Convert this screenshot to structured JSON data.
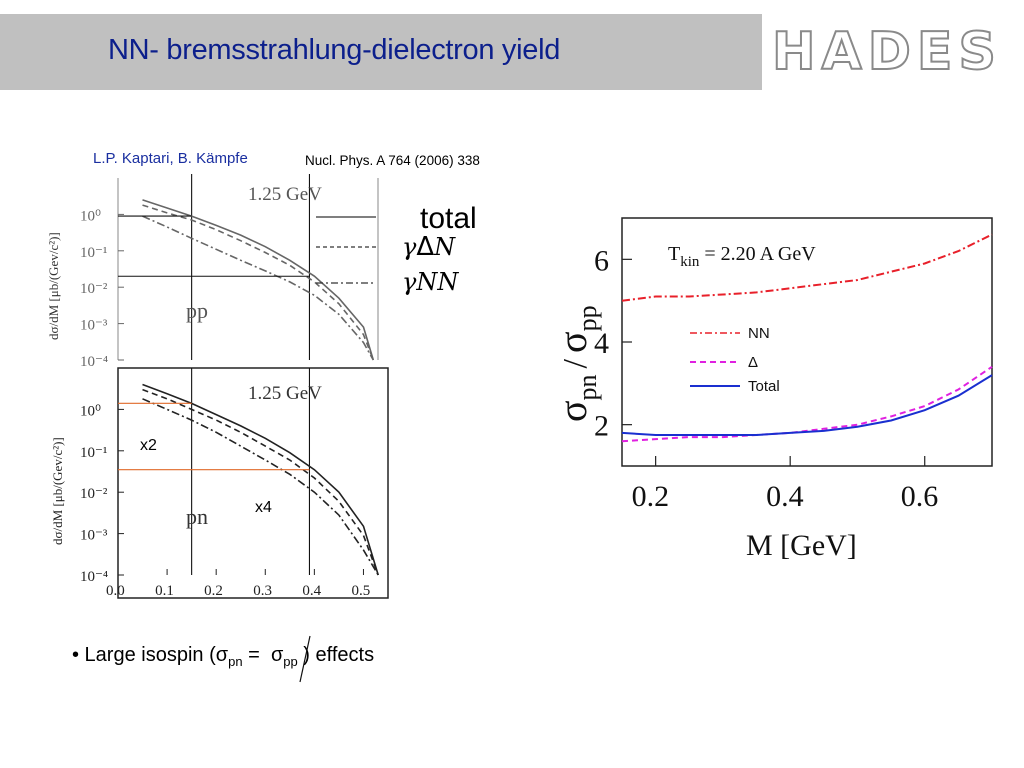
{
  "slide": {
    "title": "NN- bremsstrahlung-dielectron yield",
    "logo": "HADES",
    "reference_authors": "L.P. Kaptari, B. Kämpfe",
    "reference_journal": "Nucl. Phys. A 764 (2006) 338",
    "bullet_prefix": "• Large isospin (",
    "bullet_sigma": "σ",
    "bullet_pn": "pn",
    "bullet_eq": "=",
    "bullet_pp": "pp",
    "bullet_suffix": " ) effects"
  },
  "legend_left": {
    "total": "total",
    "delta_gamma": "γ",
    "delta_sym": "Δ",
    "delta_N": "N",
    "nn": "γNN"
  },
  "chart_data": [
    {
      "type": "line",
      "panel": "pp",
      "label": "pp",
      "annotation": "1.25 GeV",
      "ylabel": "dσ/dM [μb/(Gev/c²)]",
      "yscale": "log",
      "ylim": [
        0.0001,
        10
      ],
      "xlim": [
        0.0,
        0.55
      ],
      "yticks": [
        "10⁰",
        "10⁻¹",
        "10⁻²",
        "10⁻³",
        "10⁻⁴"
      ],
      "x": [
        0.05,
        0.1,
        0.15,
        0.2,
        0.25,
        0.3,
        0.35,
        0.4,
        0.45,
        0.5,
        0.52
      ],
      "series": [
        {
          "style": "solid",
          "values": [
            2.5,
            1.5,
            0.9,
            0.5,
            0.27,
            0.13,
            0.055,
            0.02,
            0.005,
            0.0008,
            0.0001
          ]
        },
        {
          "style": "dashed",
          "values": [
            1.8,
            1.1,
            0.7,
            0.38,
            0.19,
            0.09,
            0.04,
            0.014,
            0.0035,
            0.0005,
            0.0001
          ]
        },
        {
          "style": "dash-dot",
          "values": [
            0.9,
            0.45,
            0.22,
            0.11,
            0.055,
            0.028,
            0.014,
            0.006,
            0.0018,
            0.0003,
            0.0001
          ]
        }
      ],
      "vlines": [
        0.15,
        0.39
      ]
    },
    {
      "type": "line",
      "panel": "pn",
      "label": "pn",
      "annotation": "1.25 GeV",
      "ylabel": "dσ/dM [μb/(Gev/c²)]",
      "xlabel": "",
      "yscale": "log",
      "ylim": [
        0.0001,
        10
      ],
      "xlim": [
        0.0,
        0.55
      ],
      "xticks": [
        "0.0",
        "0.1",
        "0.2",
        "0.3",
        "0.4",
        "0.5"
      ],
      "yticks": [
        "10⁰",
        "10⁻¹",
        "10⁻²",
        "10⁻³",
        "10⁻⁴"
      ],
      "x": [
        0.05,
        0.1,
        0.15,
        0.2,
        0.25,
        0.3,
        0.35,
        0.4,
        0.45,
        0.5,
        0.53
      ],
      "series": [
        {
          "style": "solid",
          "values": [
            4.0,
            2.4,
            1.4,
            0.75,
            0.4,
            0.2,
            0.09,
            0.035,
            0.01,
            0.0015,
            0.0001
          ]
        },
        {
          "style": "dashed",
          "values": [
            3.0,
            1.8,
            1.0,
            0.55,
            0.28,
            0.13,
            0.06,
            0.022,
            0.006,
            0.0009,
            0.0001
          ]
        },
        {
          "style": "dash-dot",
          "values": [
            1.8,
            1.0,
            0.55,
            0.28,
            0.13,
            0.06,
            0.027,
            0.01,
            0.0028,
            0.0004,
            0.0001
          ]
        }
      ],
      "vlines": [
        0.15,
        0.39
      ],
      "annotations_extra": [
        "x2",
        "x4"
      ]
    },
    {
      "type": "line",
      "panel": "ratio",
      "annotation_prefix": "T",
      "annotation_sub": "kin",
      "annotation_suffix": " = 2.20 A GeV",
      "xlabel": "M [GeV]",
      "ylabel_sigma": "σ",
      "ylabel_pn": "pn",
      "ylabel_slash": "/",
      "ylabel_pp": "pp",
      "xlim": [
        0.15,
        0.7
      ],
      "ylim": [
        1.0,
        7.0
      ],
      "xticks": [
        "0.2",
        "0.4",
        "0.6"
      ],
      "yticks": [
        "2",
        "4",
        "6"
      ],
      "x": [
        0.15,
        0.2,
        0.25,
        0.3,
        0.35,
        0.4,
        0.45,
        0.5,
        0.55,
        0.6,
        0.65,
        0.7
      ],
      "series": [
        {
          "name": "NN",
          "style": "dash-dot",
          "color": "#e8202a",
          "values": [
            5.0,
            5.1,
            5.1,
            5.15,
            5.2,
            5.3,
            5.4,
            5.5,
            5.7,
            5.9,
            6.2,
            6.6
          ]
        },
        {
          "name": "Δ",
          "style": "dashed",
          "color": "#e020e0",
          "values": [
            1.6,
            1.65,
            1.7,
            1.7,
            1.75,
            1.8,
            1.9,
            2.0,
            2.2,
            2.45,
            2.85,
            3.4
          ]
        },
        {
          "name": "Total",
          "style": "solid",
          "color": "#1a2fd0",
          "values": [
            1.8,
            1.75,
            1.75,
            1.75,
            1.75,
            1.8,
            1.85,
            1.95,
            2.1,
            2.35,
            2.7,
            3.2
          ]
        }
      ]
    }
  ]
}
